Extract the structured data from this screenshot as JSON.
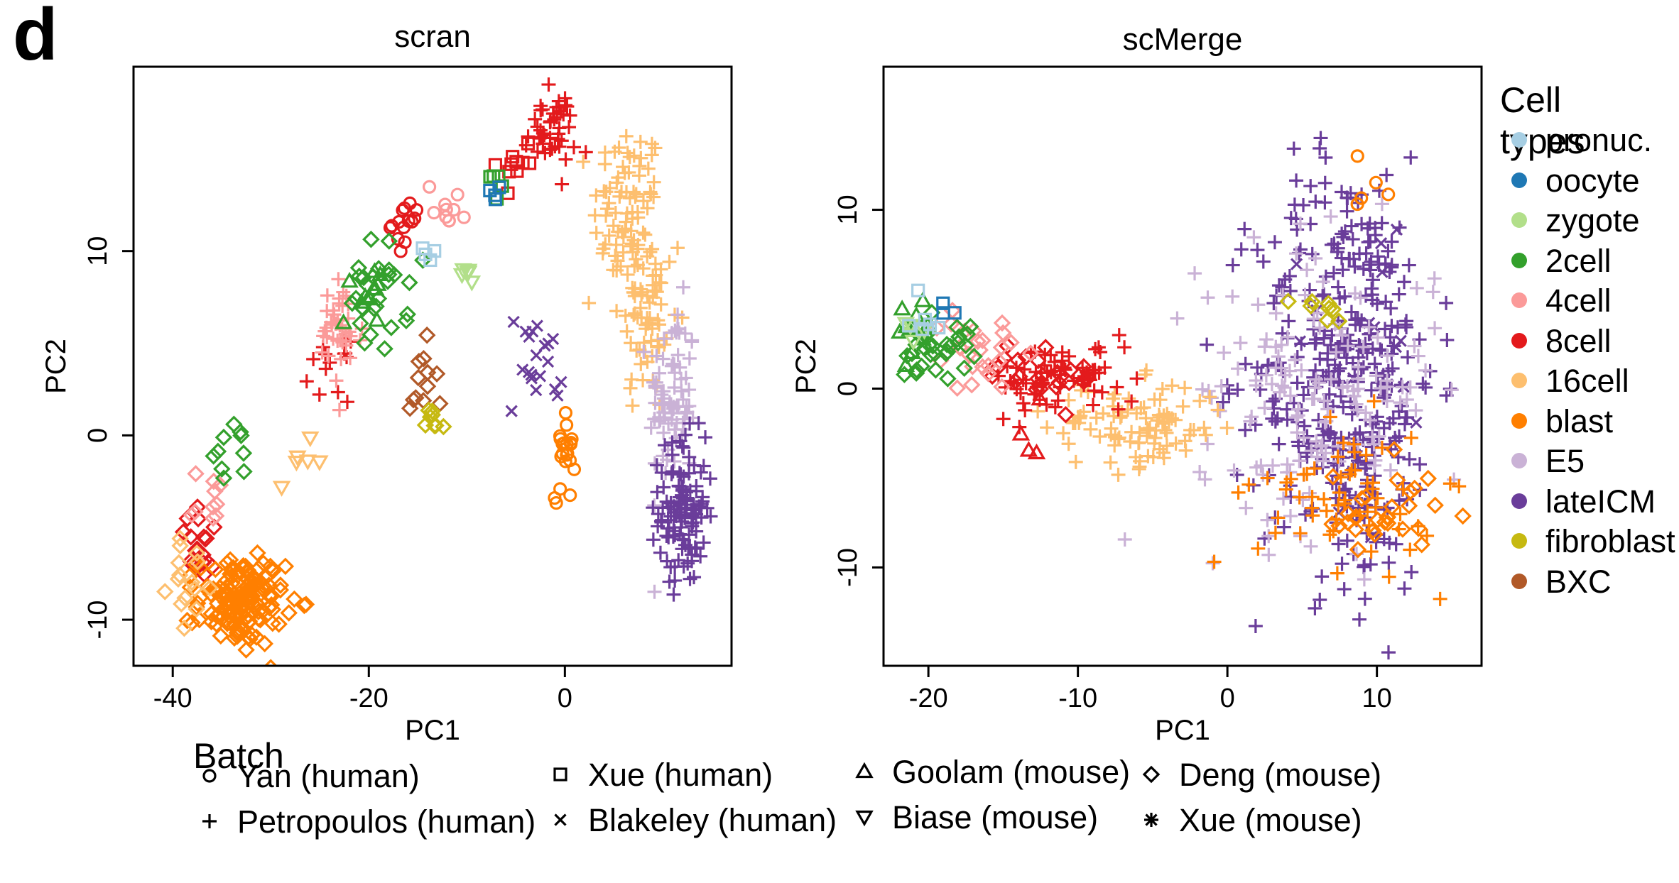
{
  "panel_label": "d",
  "colors": {
    "pronuc.": "#a6cee3",
    "oocyte": "#1f78b4",
    "zygote": "#b2df8a",
    "2cell": "#33a02c",
    "4cell": "#fb9a99",
    "8cell": "#e31a1c",
    "16cell": "#fdbf6f",
    "blast": "#ff7f00",
    "E5": "#cab2d6",
    "lateICM": "#6a3d9a",
    "fibroblast": "#c6b911",
    "BXC": "#b15928"
  },
  "cell_legend": {
    "title": "Cell types",
    "items": [
      "pronuc.",
      "oocyte",
      "zygote",
      "2cell",
      "4cell",
      "8cell",
      "16cell",
      "blast",
      "E5",
      "lateICM",
      "fibroblast",
      "BXC"
    ]
  },
  "batch_legend": {
    "title": "Batch",
    "items": [
      {
        "label": "Yan (human)",
        "marker": "circle-icon"
      },
      {
        "label": "Petropoulos (human)",
        "marker": "plus-icon"
      },
      {
        "label": "Xue (human)",
        "marker": "square-icon"
      },
      {
        "label": "Blakeley (human)",
        "marker": "cross-icon"
      },
      {
        "label": "Goolam (mouse)",
        "marker": "triangle-up-icon"
      },
      {
        "label": "Biase (mouse)",
        "marker": "triangle-down-icon"
      },
      {
        "label": "Deng (mouse)",
        "marker": "diamond-icon"
      },
      {
        "label": "Xue (mouse)",
        "marker": "asterisk-icon"
      }
    ]
  },
  "chart_data": [
    {
      "type": "scatter",
      "title": "scran",
      "xlabel": "PC1",
      "ylabel": "PC2",
      "xlim": [
        -44,
        17
      ],
      "ylim": [
        -12.5,
        20
      ],
      "xticks": [
        -40,
        -20,
        0
      ],
      "yticks": [
        -10,
        0,
        10
      ],
      "grid": false,
      "clusters": [
        {
          "type": "16cell",
          "batch": "Petropoulos (human)",
          "x": 6.5,
          "y": 12,
          "sx": 1.8,
          "sy": 2.5,
          "n": 90
        },
        {
          "type": "16cell",
          "batch": "Petropoulos (human)",
          "x": 8.5,
          "y": 6,
          "sx": 1.5,
          "sy": 2.5,
          "n": 60
        },
        {
          "type": "E5",
          "batch": "Petropoulos (human)",
          "x": 11,
          "y": 2,
          "sx": 1.2,
          "sy": 2.5,
          "n": 80
        },
        {
          "type": "lateICM",
          "batch": "Petropoulos (human)",
          "x": 12,
          "y": -4,
          "sx": 1.2,
          "sy": 2.0,
          "n": 120
        },
        {
          "type": "lateICM",
          "batch": "Blakeley (human)",
          "x": -3,
          "y": 4,
          "sx": 1.5,
          "sy": 1.5,
          "n": 20
        },
        {
          "type": "8cell",
          "batch": "Petropoulos (human)",
          "x": -1.5,
          "y": 16.5,
          "sx": 1.3,
          "sy": 1.0,
          "n": 45
        },
        {
          "type": "8cell",
          "batch": "Xue (human)",
          "x": -5,
          "y": 15,
          "sx": 1,
          "sy": 0.8,
          "n": 10
        },
        {
          "type": "8cell",
          "batch": "Yan (human)",
          "x": -16,
          "y": 11.5,
          "sx": 0.8,
          "sy": 0.6,
          "n": 14
        },
        {
          "type": "8cell",
          "batch": "Petropoulos (human)",
          "x": -24,
          "y": 3.5,
          "sx": 1.0,
          "sy": 0.8,
          "n": 14
        },
        {
          "type": "8cell",
          "batch": "Deng (mouse)",
          "x": -37,
          "y": -6,
          "sx": 1.2,
          "sy": 1.0,
          "n": 22
        },
        {
          "type": "4cell",
          "batch": "Petropoulos (human)",
          "x": -23,
          "y": 5.5,
          "sx": 1.2,
          "sy": 1.5,
          "n": 40
        },
        {
          "type": "4cell",
          "batch": "Deng (mouse)",
          "x": -36,
          "y": -3.5,
          "sx": 1.0,
          "sy": 0.8,
          "n": 10
        },
        {
          "type": "4cell",
          "batch": "Yan (human)",
          "x": -12,
          "y": 12.5,
          "sx": 1.0,
          "sy": 0.6,
          "n": 10
        },
        {
          "type": "2cell",
          "batch": "Deng (mouse)",
          "x": -19,
          "y": 7.5,
          "sx": 1.5,
          "sy": 1.5,
          "n": 28
        },
        {
          "type": "2cell",
          "batch": "Goolam (mouse)",
          "x": -20.5,
          "y": 8,
          "sx": 1.0,
          "sy": 1.0,
          "n": 12
        },
        {
          "type": "2cell",
          "batch": "Deng (mouse)",
          "x": -34,
          "y": -1,
          "sx": 1.2,
          "sy": 0.8,
          "n": 10
        },
        {
          "type": "2cell",
          "batch": "Xue (human)",
          "x": -7,
          "y": 14,
          "sx": 0.4,
          "sy": 0.6,
          "n": 5
        },
        {
          "type": "blast",
          "batch": "Deng (mouse)",
          "x": -33,
          "y": -9,
          "sx": 2.2,
          "sy": 1.2,
          "n": 150
        },
        {
          "type": "blast",
          "batch": "Yan (human)",
          "x": 0,
          "y": -0.5,
          "sx": 0.5,
          "sy": 1.5,
          "n": 22
        },
        {
          "type": "16cell",
          "batch": "Deng (mouse)",
          "x": -38,
          "y": -8,
          "sx": 1.2,
          "sy": 1.0,
          "n": 15
        },
        {
          "type": "16cell",
          "batch": "Biase (mouse)",
          "x": -27,
          "y": -1.5,
          "sx": 1.2,
          "sy": 0.6,
          "n": 6
        },
        {
          "type": "BXC",
          "batch": "Deng (mouse)",
          "x": -15,
          "y": 2.5,
          "sx": 1.0,
          "sy": 1.2,
          "n": 12
        },
        {
          "type": "fibroblast",
          "batch": "Deng (mouse)",
          "x": -13.5,
          "y": 0.5,
          "sx": 0.5,
          "sy": 0.6,
          "n": 8
        },
        {
          "type": "zygote",
          "batch": "Biase (mouse)",
          "x": -10,
          "y": 8.8,
          "sx": 0.4,
          "sy": 0.3,
          "n": 6
        },
        {
          "type": "oocyte",
          "batch": "Xue (human)",
          "x": -7,
          "y": 13.5,
          "sx": 0.3,
          "sy": 0.5,
          "n": 4
        },
        {
          "type": "pronuc.",
          "batch": "Xue (human)",
          "x": -14,
          "y": 9.8,
          "sx": 0.4,
          "sy": 0.3,
          "n": 4
        }
      ]
    },
    {
      "type": "scatter",
      "title": "scMerge",
      "xlabel": "PC1",
      "ylabel": "PC2",
      "xlim": [
        -23,
        17
      ],
      "ylim": [
        -15.5,
        18
      ],
      "xticks": [
        -20,
        -10,
        0,
        10
      ],
      "yticks": [
        -10,
        0,
        10
      ],
      "grid": false,
      "clusters": [
        {
          "type": "lateICM",
          "batch": "Petropoulos (human)",
          "x": 8,
          "y": 1,
          "sx": 3,
          "sy": 6,
          "n": 380
        },
        {
          "type": "lateICM",
          "batch": "Blakeley (human)",
          "x": 10,
          "y": 3,
          "sx": 3,
          "sy": 5,
          "n": 15
        },
        {
          "type": "E5",
          "batch": "Petropoulos (human)",
          "x": 6,
          "y": 0,
          "sx": 4,
          "sy": 4,
          "n": 150
        },
        {
          "type": "16cell",
          "batch": "Petropoulos (human)",
          "x": -6,
          "y": -2,
          "sx": 3,
          "sy": 1.2,
          "n": 100
        },
        {
          "type": "blast",
          "batch": "Petropoulos (human)",
          "x": 8,
          "y": -6,
          "sx": 3,
          "sy": 2,
          "n": 60
        },
        {
          "type": "blast",
          "batch": "Deng (mouse)",
          "x": 10,
          "y": -7,
          "sx": 2,
          "sy": 1.5,
          "n": 30
        },
        {
          "type": "8cell",
          "batch": "Petropoulos (human)",
          "x": -11,
          "y": 0.5,
          "sx": 2.5,
          "sy": 1,
          "n": 70
        },
        {
          "type": "8cell",
          "batch": "Deng (mouse)",
          "x": -12,
          "y": 1,
          "sx": 2,
          "sy": 1,
          "n": 25
        },
        {
          "type": "4cell",
          "batch": "Deng (mouse)",
          "x": -17,
          "y": 2,
          "sx": 1.5,
          "sy": 1,
          "n": 25
        },
        {
          "type": "2cell",
          "batch": "Deng (mouse)",
          "x": -19.5,
          "y": 2.5,
          "sx": 1.2,
          "sy": 1,
          "n": 30
        },
        {
          "type": "2cell",
          "batch": "Goolam (mouse)",
          "x": -21,
          "y": 3,
          "sx": 1.0,
          "sy": 0.8,
          "n": 12
        },
        {
          "type": "zygote",
          "batch": "Biase (mouse)",
          "x": -21.5,
          "y": 3.5,
          "sx": 0.6,
          "sy": 0.5,
          "n": 5
        },
        {
          "type": "pronuc.",
          "batch": "Xue (human)",
          "x": -20,
          "y": 3.5,
          "sx": 0.6,
          "sy": 0.8,
          "n": 6
        },
        {
          "type": "oocyte",
          "batch": "Xue (human)",
          "x": -19,
          "y": 4.5,
          "sx": 0.3,
          "sy": 0.3,
          "n": 3
        },
        {
          "type": "fibroblast",
          "batch": "Deng (mouse)",
          "x": 6,
          "y": 5,
          "sx": 1,
          "sy": 0.5,
          "n": 8
        },
        {
          "type": "blast",
          "batch": "Yan (human)",
          "x": 9,
          "y": 12,
          "sx": 1,
          "sy": 2,
          "n": 5
        },
        {
          "type": "8cell",
          "batch": "Goolam (mouse)",
          "x": -13,
          "y": -2.5,
          "sx": 1.5,
          "sy": 1.5,
          "n": 4
        }
      ]
    }
  ]
}
